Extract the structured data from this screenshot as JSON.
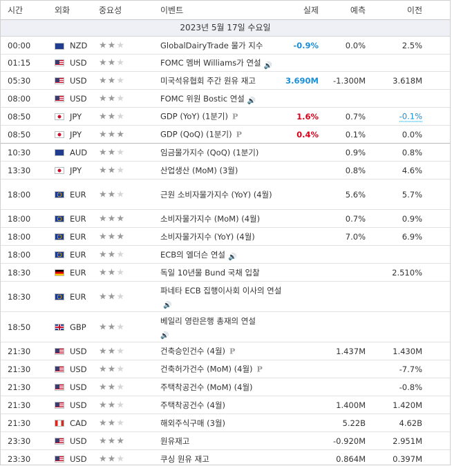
{
  "headers": {
    "time": "시간",
    "currency": "외화",
    "importance": "중요성",
    "event": "이벤트",
    "actual": "실제",
    "forecast": "예측",
    "previous": "이전"
  },
  "date_label": "2023년 5월 17일 수요일",
  "colors": {
    "negative_actual": "#1a8fd8",
    "positive_actual": "#d9001b",
    "date_bg": "#eef0f5"
  },
  "rows": [
    {
      "time": "00:00",
      "flag": "nz",
      "currency": "NZD",
      "stars": 2,
      "event": "GlobalDairyTrade 물가 지수",
      "speech": false,
      "prelim": false,
      "actual": "-0.9%",
      "actual_color": "blue",
      "forecast": "0.0%",
      "previous": "2.5%",
      "h": 26
    },
    {
      "time": "01:15",
      "flag": "us",
      "currency": "USD",
      "stars": 2,
      "event": "FOMC 멤버 Williams가 연설",
      "speech": true,
      "prelim": false,
      "actual": "",
      "forecast": "",
      "previous": "",
      "h": 25
    },
    {
      "time": "05:30",
      "flag": "us",
      "currency": "USD",
      "stars": 2,
      "event": "미국석유협회 주간 원유 재고",
      "speech": false,
      "prelim": false,
      "actual": "3.690M",
      "actual_color": "blue",
      "forecast": "-1.300M",
      "previous": "3.618M",
      "h": 26
    },
    {
      "time": "08:00",
      "flag": "us",
      "currency": "USD",
      "stars": 2,
      "event": "FOMC 위원 Bostic 연설",
      "speech": true,
      "prelim": false,
      "actual": "",
      "forecast": "",
      "previous": "",
      "h": 26
    },
    {
      "time": "08:50",
      "flag": "jp",
      "currency": "JPY",
      "stars": 2,
      "event": "GDP (YoY) (1분기)",
      "speech": false,
      "prelim": true,
      "actual": "1.6%",
      "actual_color": "red",
      "forecast": "0.7%",
      "previous": "-0.1%",
      "previous_style": "dash",
      "h": 26
    },
    {
      "time": "08:50",
      "flag": "jp",
      "currency": "JPY",
      "stars": 3,
      "event": "GDP (QoQ) (1분기)",
      "speech": false,
      "prelim": true,
      "actual": "0.4%",
      "actual_color": "red",
      "forecast": "0.1%",
      "previous": "0.0%",
      "h": 26,
      "sep": true
    },
    {
      "time": "10:30",
      "flag": "au",
      "currency": "AUD",
      "stars": 2,
      "event": "임금물가지수 (QoQ) (1분기)",
      "speech": false,
      "prelim": false,
      "actual": "",
      "forecast": "0.9%",
      "previous": "0.8%",
      "h": 26
    },
    {
      "time": "13:30",
      "flag": "jp",
      "currency": "JPY",
      "stars": 2,
      "event": "산업생산 (MoM) (3월)",
      "speech": false,
      "prelim": false,
      "actual": "",
      "forecast": "0.8%",
      "previous": "4.6%",
      "h": 26
    },
    {
      "time": "18:00",
      "flag": "eu",
      "currency": "EUR",
      "stars": 2,
      "event": "근원 소비자물가지수 (YoY) (4월)",
      "speech": false,
      "prelim": false,
      "actual": "",
      "forecast": "5.6%",
      "previous": "5.7%",
      "h": 44
    },
    {
      "time": "18:00",
      "flag": "eu",
      "currency": "EUR",
      "stars": 3,
      "event": "소비자물가지수 (MoM) (4월)",
      "speech": false,
      "prelim": false,
      "actual": "",
      "forecast": "0.7%",
      "previous": "0.9%",
      "h": 26
    },
    {
      "time": "18:00",
      "flag": "eu",
      "currency": "EUR",
      "stars": 3,
      "event": "소비자물가지수 (YoY) (4월)",
      "speech": false,
      "prelim": false,
      "actual": "",
      "forecast": "7.0%",
      "previous": "6.9%",
      "h": 26
    },
    {
      "time": "18:00",
      "flag": "eu",
      "currency": "EUR",
      "stars": 2,
      "event": "ECB의 엘더슨 연설",
      "speech": true,
      "prelim": false,
      "actual": "",
      "forecast": "",
      "previous": "",
      "h": 26
    },
    {
      "time": "18:30",
      "flag": "de",
      "currency": "EUR",
      "stars": 2,
      "event": "독일 10년물 Bund 국채 입찰",
      "speech": false,
      "prelim": false,
      "actual": "",
      "forecast": "",
      "previous": "2.510%",
      "h": 26
    },
    {
      "time": "18:30",
      "flag": "eu",
      "currency": "EUR",
      "stars": 2,
      "event": "파네타 ECB 집행이사회 이사의 연설",
      "speech": true,
      "prelim": false,
      "actual": "",
      "forecast": "",
      "previous": "",
      "h": 44
    },
    {
      "time": "18:50",
      "flag": "gb",
      "currency": "GBP",
      "stars": 2,
      "event": "베일리 영란은행 총재의 연설",
      "speech": true,
      "speech_newline": true,
      "prelim": false,
      "actual": "",
      "forecast": "",
      "previous": "",
      "h": 44
    },
    {
      "time": "21:30",
      "flag": "us",
      "currency": "USD",
      "stars": 2,
      "event": "건축승인건수 (4월)",
      "speech": false,
      "prelim": true,
      "actual": "",
      "forecast": "1.437M",
      "previous": "1.430M",
      "h": 26
    },
    {
      "time": "21:30",
      "flag": "us",
      "currency": "USD",
      "stars": 2,
      "event": "건축허가건수 (MoM) (4월)",
      "speech": false,
      "prelim": true,
      "actual": "",
      "forecast": "",
      "previous": "-7.7%",
      "h": 26
    },
    {
      "time": "21:30",
      "flag": "us",
      "currency": "USD",
      "stars": 2,
      "event": "주택착공건수 (MoM) (4월)",
      "speech": false,
      "prelim": false,
      "actual": "",
      "forecast": "",
      "previous": "-0.8%",
      "h": 26
    },
    {
      "time": "21:30",
      "flag": "us",
      "currency": "USD",
      "stars": 2,
      "event": "주택착공건수 (4월)",
      "speech": false,
      "prelim": false,
      "actual": "",
      "forecast": "1.400M",
      "previous": "1.420M",
      "h": 26
    },
    {
      "time": "21:30",
      "flag": "ca",
      "currency": "CAD",
      "stars": 2,
      "event": "해외주식구매 (3월)",
      "speech": false,
      "prelim": false,
      "actual": "",
      "forecast": "5.22B",
      "previous": "4.62B",
      "h": 26
    },
    {
      "time": "23:30",
      "flag": "us",
      "currency": "USD",
      "stars": 3,
      "event": "원유재고",
      "speech": false,
      "prelim": false,
      "actual": "",
      "forecast": "-0.920M",
      "previous": "2.951M",
      "h": 26
    },
    {
      "time": "23:30",
      "flag": "us",
      "currency": "USD",
      "stars": 2,
      "event": "쿠싱 원유 재고",
      "speech": false,
      "prelim": false,
      "actual": "",
      "forecast": "0.864M",
      "previous": "0.397M",
      "h": 26
    }
  ]
}
